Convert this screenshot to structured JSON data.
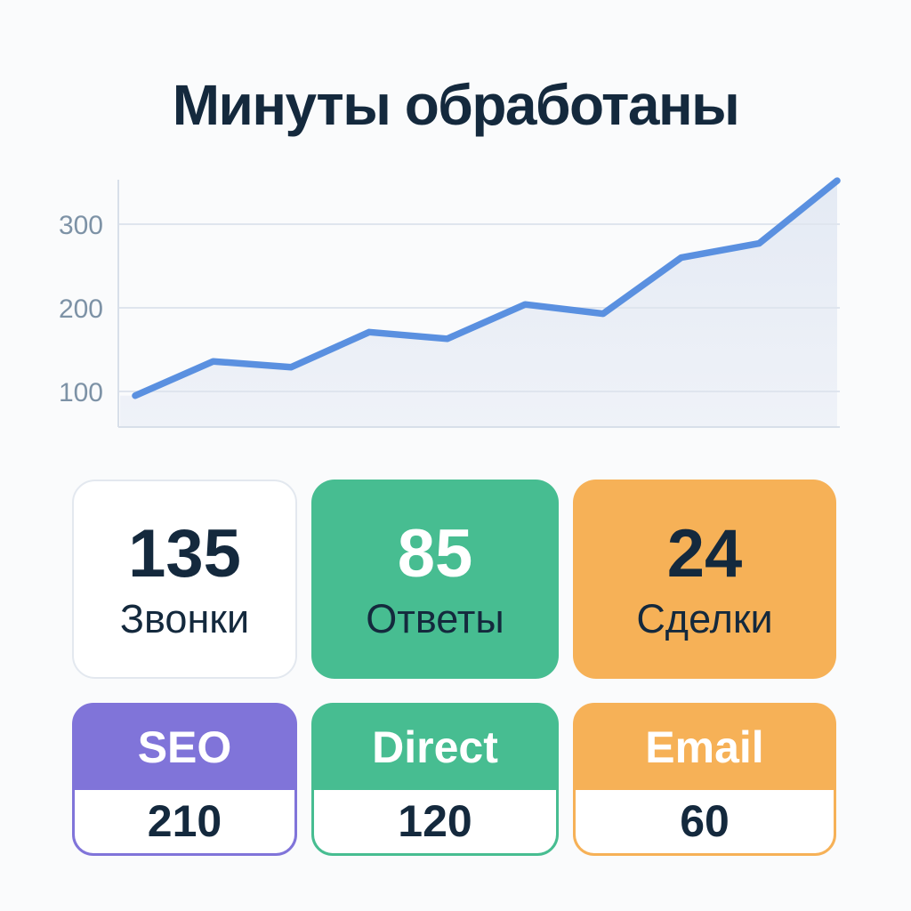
{
  "title": "Минуты обработаны",
  "colors": {
    "navy": "#14293d",
    "green": "#47bd91",
    "orange": "#f6b157",
    "purple": "#8074d9",
    "line_blue": "#5a90e0",
    "tick_gray": "#7d92a6",
    "card_border_gray": "#e3e8ef",
    "white": "#ffffff"
  },
  "chart_data": {
    "type": "area",
    "title": "Минуты обработаны",
    "values": [
      95,
      136,
      129,
      171,
      163,
      204,
      193,
      260,
      277,
      352
    ],
    "y_ticks": [
      100,
      200,
      300
    ],
    "ylim": [
      50,
      360
    ],
    "grid": "horizontal",
    "x_tick_labels": [],
    "legend": "none",
    "line_color": "#5a90e0",
    "fill_top": "#e4eaf4",
    "fill_bottom": "#eff2f8"
  },
  "stats": [
    {
      "value": "135",
      "label": "Звонки",
      "variant": "white"
    },
    {
      "value": "85",
      "label": "Ответы",
      "variant": "green"
    },
    {
      "value": "24",
      "label": "Сделки",
      "variant": "orange"
    }
  ],
  "channels": [
    {
      "name": "SEO",
      "value": "210",
      "variant": "purple"
    },
    {
      "name": "Direct",
      "value": "120",
      "variant": "green"
    },
    {
      "name": "Email",
      "value": "60",
      "variant": "orange"
    }
  ]
}
